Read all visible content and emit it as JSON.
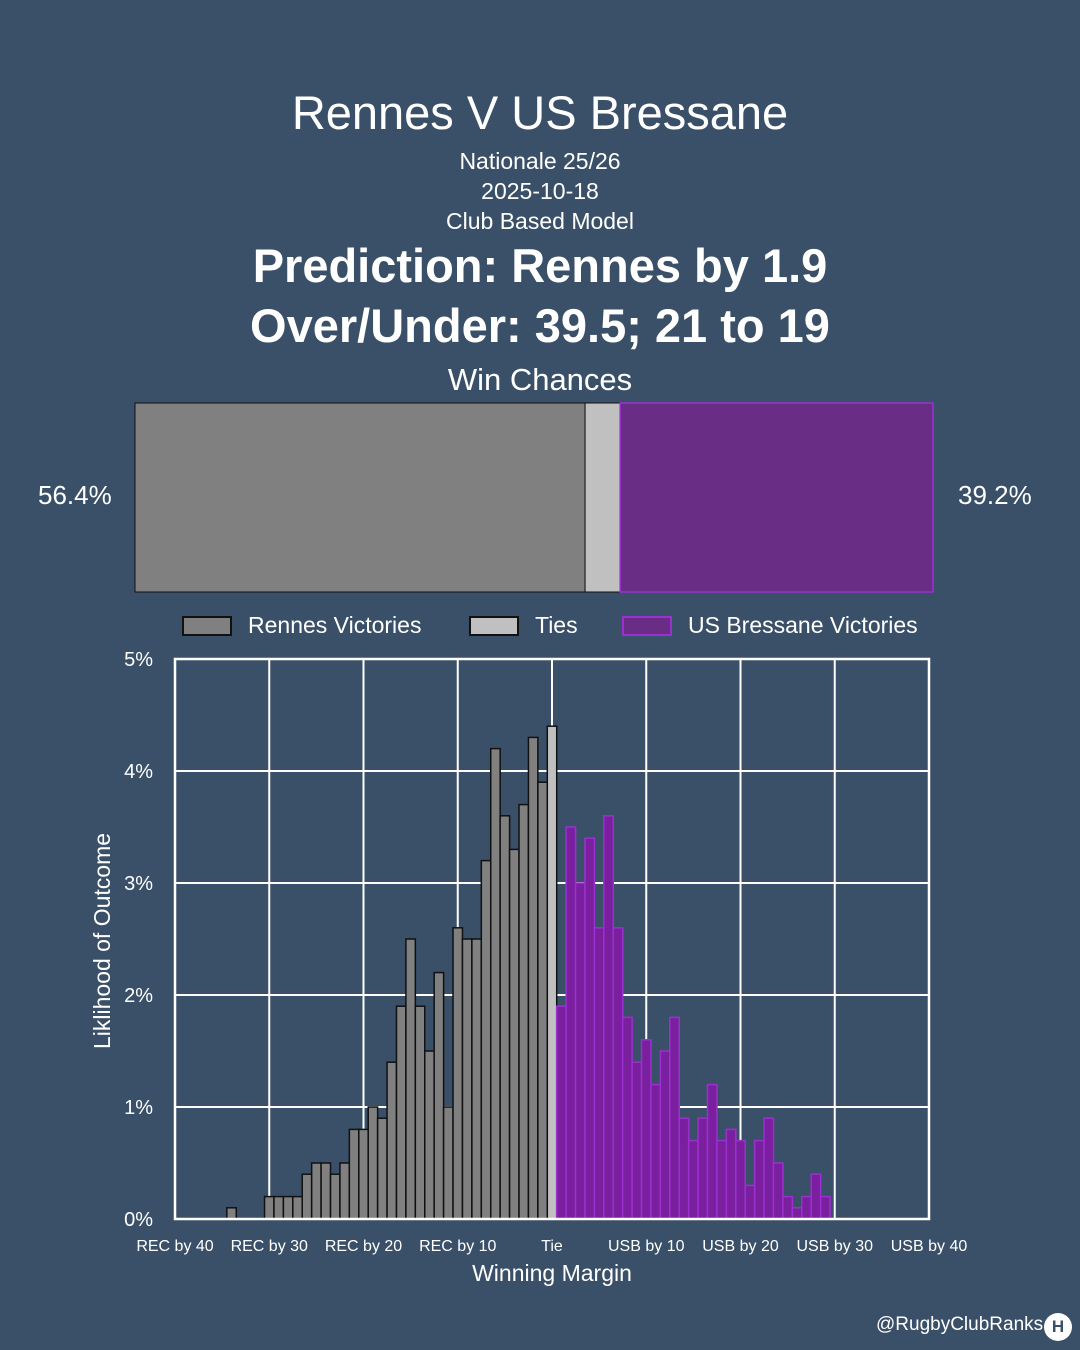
{
  "header": {
    "title": "Rennes V US Bressane",
    "competition": "Nationale 25/26",
    "date": "2025-10-18",
    "model": "Club Based Model",
    "prediction": "Prediction: Rennes by 1.9",
    "over_under": "Over/Under: 39.5; 21 to 19"
  },
  "win_chances": {
    "title": "Win Chances",
    "home_pct": 56.4,
    "tie_pct": 4.4,
    "away_pct": 39.2,
    "home_label": "56.4%",
    "away_label": "39.2%"
  },
  "legend": {
    "home": "Rennes Victories",
    "tie": "Ties",
    "away": "US Bressane Victories"
  },
  "colors": {
    "background": "#3a5068",
    "home": "#808080",
    "tie": "#c0c0c0",
    "away": "#6a2d86",
    "away_hist": "#7a1f9e",
    "away_edge": "#9b30d0"
  },
  "chart_data": {
    "type": "bar",
    "title": "",
    "xlabel": "Winning Margin",
    "ylabel": "Liklihood of Outcome",
    "xlim": [
      -40,
      40
    ],
    "ylim": [
      0,
      5
    ],
    "grid": true,
    "x_ticks": [
      -40,
      -30,
      -20,
      -10,
      0,
      10,
      20,
      30,
      40
    ],
    "x_tick_labels": [
      "REC by 40",
      "REC by 30",
      "REC by 20",
      "REC by 10",
      "Tie",
      "USB by 10",
      "USB by 20",
      "USB by 30",
      "USB by 40"
    ],
    "y_ticks": [
      0,
      1,
      2,
      3,
      4,
      5
    ],
    "y_tick_labels": [
      "0%",
      "1%",
      "2%",
      "3%",
      "4%",
      "5%"
    ],
    "series": [
      {
        "name": "Rennes Victories",
        "x": [
          -34,
          -30,
          -29,
          -28,
          -27,
          -26,
          -25,
          -24,
          -23,
          -22,
          -21,
          -20,
          -19,
          -18,
          -17,
          -16,
          -15,
          -14,
          -13,
          -12,
          -11,
          -10,
          -9,
          -8,
          -7,
          -6,
          -5,
          -4,
          -3,
          -2,
          -1
        ],
        "values": [
          0.1,
          0.2,
          0.2,
          0.2,
          0.2,
          0.4,
          0.5,
          0.5,
          0.4,
          0.5,
          0.8,
          0.8,
          1.0,
          0.9,
          1.4,
          1.9,
          2.5,
          1.9,
          1.5,
          2.2,
          1.0,
          2.6,
          2.5,
          2.5,
          3.2,
          4.2,
          3.6,
          3.3,
          3.7,
          4.3,
          3.5
        ]
      },
      {
        "name": "Ties",
        "x": [
          0
        ],
        "values": [
          4.4
        ]
      },
      {
        "name": "US Bressane Victories",
        "x": [
          1,
          2,
          3,
          4,
          5,
          6,
          7,
          8,
          9,
          10,
          11,
          12,
          13,
          14,
          15,
          16,
          17,
          18,
          19,
          20,
          21,
          22,
          23,
          24,
          25,
          26,
          27,
          28,
          29
        ],
        "values": [
          1.9,
          3.5,
          3.0,
          3.4,
          2.6,
          3.6,
          2.6,
          1.8,
          1.4,
          1.6,
          1.2,
          1.5,
          1.8,
          0.9,
          0.7,
          0.9,
          1.2,
          0.7,
          0.8,
          0.7,
          0.3,
          0.7,
          0.9,
          0.5,
          0.2,
          0.1,
          0.2,
          0.4,
          0.2
        ]
      }
    ],
    "extra_left_bar": {
      "x": -1,
      "value": 3.9
    }
  },
  "footer": {
    "handle": "@RugbyClubRanks",
    "logo_glyph": "H"
  }
}
